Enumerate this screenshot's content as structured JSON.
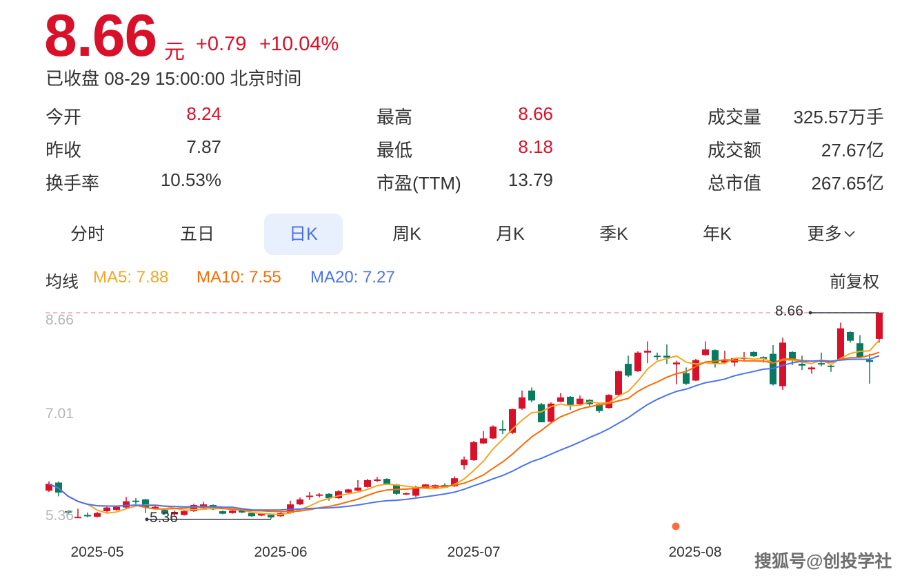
{
  "quote": {
    "price": "8.66",
    "unit": "元",
    "change": "+0.79",
    "change_pct": "+10.04%",
    "status": "已收盘 08-29 15:00:00 北京时间"
  },
  "stats": [
    {
      "label": "今开",
      "value": "8.24",
      "color": "#d9102a"
    },
    {
      "label": "最高",
      "value": "8.66",
      "color": "#d9102a"
    },
    {
      "label": "成交量",
      "value": "325.57万手",
      "color": "#333333"
    },
    {
      "label": "昨收",
      "value": "7.87",
      "color": "#333333"
    },
    {
      "label": "最低",
      "value": "8.18",
      "color": "#d9102a"
    },
    {
      "label": "成交额",
      "value": "27.67亿",
      "color": "#333333"
    },
    {
      "label": "换手率",
      "value": "10.53%",
      "color": "#333333"
    },
    {
      "label": "市盈(TTM)",
      "value": "13.79",
      "color": "#333333"
    },
    {
      "label": "总市值",
      "value": "267.65亿",
      "color": "#333333"
    }
  ],
  "tabs": [
    {
      "label": "分时",
      "active": false
    },
    {
      "label": "五日",
      "active": false
    },
    {
      "label": "日K",
      "active": true
    },
    {
      "label": "周K",
      "active": false
    },
    {
      "label": "月K",
      "active": false
    },
    {
      "label": "季K",
      "active": false
    },
    {
      "label": "年K",
      "active": false
    },
    {
      "label": "更多",
      "active": false,
      "icon": "chevron-down-icon"
    }
  ],
  "legend": {
    "title": "均线",
    "ma5": "MA5: 7.88",
    "ma10": "MA10: 7.55",
    "ma20": "MA20: 7.27",
    "adjust": "前复权"
  },
  "colors": {
    "up": "#d9102a",
    "down": "#087a5f",
    "ma5": "#f5a623",
    "ma10": "#ff6a00",
    "ma20": "#4b73f0",
    "active_tab_bg": "#e8f0fd",
    "active_tab_text": "#4a6ee0"
  },
  "watermark": "搜狐号@创投学社",
  "chart_data": {
    "type": "candlestick",
    "y_ticks": [
      "8.66",
      "7.01",
      "5.36"
    ],
    "ylim": [
      5.36,
      8.66
    ],
    "x_ticks": [
      "2025-05",
      "2025-06",
      "2025-07",
      "2025-08"
    ],
    "max_label": "8.66",
    "min_label": "5.36",
    "ma_periods": [
      5,
      10,
      20
    ],
    "candles_ohlc": [
      [
        5.8,
        5.91,
        5.95,
        5.78
      ],
      [
        5.93,
        5.77,
        5.95,
        5.71
      ],
      [
        5.47,
        5.45,
        5.49,
        5.43
      ],
      [
        5.36,
        5.38,
        5.51,
        5.36
      ],
      [
        5.41,
        5.4,
        5.45,
        5.37
      ],
      [
        5.38,
        5.44,
        5.46,
        5.37
      ],
      [
        5.47,
        5.53,
        5.56,
        5.45
      ],
      [
        5.49,
        5.54,
        5.56,
        5.48
      ],
      [
        5.53,
        5.63,
        5.7,
        5.52
      ],
      [
        5.64,
        5.63,
        5.68,
        5.58
      ],
      [
        5.66,
        5.53,
        5.67,
        5.44
      ],
      [
        5.52,
        5.54,
        5.57,
        5.5
      ],
      [
        5.49,
        5.43,
        5.5,
        5.41
      ],
      [
        5.42,
        5.46,
        5.48,
        5.4
      ],
      [
        5.41,
        5.47,
        5.49,
        5.4
      ],
      [
        5.47,
        5.57,
        5.59,
        5.46
      ],
      [
        5.52,
        5.58,
        5.62,
        5.51
      ],
      [
        5.57,
        5.5,
        5.58,
        5.49
      ],
      [
        5.47,
        5.43,
        5.48,
        5.42
      ],
      [
        5.44,
        5.48,
        5.49,
        5.43
      ],
      [
        5.48,
        5.45,
        5.49,
        5.44
      ],
      [
        5.44,
        5.39,
        5.45,
        5.38
      ],
      [
        5.4,
        5.43,
        5.44,
        5.39
      ],
      [
        5.41,
        5.37,
        5.42,
        5.35
      ],
      [
        5.39,
        5.44,
        5.45,
        5.38
      ],
      [
        5.44,
        5.58,
        5.64,
        5.43
      ],
      [
        5.58,
        5.66,
        5.69,
        5.57
      ],
      [
        5.71,
        5.72,
        5.78,
        5.65
      ],
      [
        5.72,
        5.74,
        5.76,
        5.69
      ],
      [
        5.75,
        5.68,
        5.76,
        5.64
      ],
      [
        5.68,
        5.79,
        5.81,
        5.67
      ],
      [
        5.77,
        5.82,
        5.83,
        5.76
      ],
      [
        5.8,
        5.85,
        5.97,
        5.79
      ],
      [
        5.86,
        5.97,
        5.99,
        5.85
      ],
      [
        5.96,
        5.98,
        6.02,
        5.94
      ],
      [
        5.99,
        5.91,
        6.0,
        5.89
      ],
      [
        5.9,
        5.75,
        5.91,
        5.73
      ],
      [
        5.74,
        5.76,
        5.77,
        5.73
      ],
      [
        5.72,
        5.86,
        5.88,
        5.7
      ],
      [
        5.84,
        5.9,
        5.91,
        5.83
      ],
      [
        5.85,
        5.89,
        5.9,
        5.84
      ],
      [
        5.89,
        5.85,
        5.92,
        5.84
      ],
      [
        5.87,
        6.0,
        6.03,
        5.86
      ],
      [
        6.21,
        6.3,
        6.35,
        6.14
      ],
      [
        6.29,
        6.58,
        6.6,
        6.28
      ],
      [
        6.56,
        6.64,
        6.76,
        6.55
      ],
      [
        6.64,
        6.83,
        6.85,
        6.63
      ],
      [
        6.79,
        6.78,
        6.93,
        6.71
      ],
      [
        6.73,
        7.11,
        7.12,
        6.71
      ],
      [
        7.12,
        7.3,
        7.41,
        7.1
      ],
      [
        7.41,
        7.25,
        7.46,
        7.22
      ],
      [
        7.19,
        6.9,
        7.21,
        6.9
      ],
      [
        6.91,
        7.2,
        7.22,
        6.89
      ],
      [
        7.23,
        7.3,
        7.37,
        7.22
      ],
      [
        7.31,
        7.18,
        7.32,
        7.1
      ],
      [
        7.19,
        7.28,
        7.33,
        7.17
      ],
      [
        7.26,
        7.19,
        7.27,
        7.15
      ],
      [
        7.19,
        7.08,
        7.2,
        7.05
      ],
      [
        7.13,
        7.34,
        7.35,
        7.12
      ],
      [
        7.34,
        7.72,
        7.73,
        7.33
      ],
      [
        7.84,
        7.65,
        7.97,
        7.63
      ],
      [
        7.72,
        8.02,
        8.04,
        7.71
      ],
      [
        8.02,
        8.05,
        8.2,
        7.85
      ],
      [
        7.97,
        7.96,
        8.02,
        7.9
      ],
      [
        7.97,
        7.94,
        8.15,
        7.84
      ],
      [
        7.83,
        7.86,
        7.89,
        7.51
      ],
      [
        7.69,
        7.52,
        7.78,
        7.5
      ],
      [
        7.57,
        7.9,
        7.92,
        7.56
      ],
      [
        7.98,
        8.07,
        8.2,
        7.97
      ],
      [
        8.06,
        7.85,
        8.07,
        7.78
      ],
      [
        7.86,
        7.89,
        8.05,
        7.84
      ],
      [
        7.86,
        7.93,
        7.94,
        7.8
      ],
      [
        7.92,
        7.94,
        8.03,
        7.9
      ],
      [
        8.03,
        7.96,
        8.04,
        7.95
      ],
      [
        7.95,
        7.92,
        7.96,
        7.86
      ],
      [
        8.0,
        7.51,
        8.14,
        7.49
      ],
      [
        7.48,
        8.18,
        8.26,
        7.42
      ],
      [
        8.03,
        7.92,
        8.04,
        7.82
      ],
      [
        7.84,
        7.81,
        7.97,
        7.74
      ],
      [
        7.75,
        7.78,
        7.8,
        7.68
      ],
      [
        7.85,
        7.83,
        8.02,
        7.8
      ],
      [
        7.81,
        7.8,
        7.84,
        7.71
      ],
      [
        7.91,
        8.41,
        8.5,
        7.9
      ],
      [
        8.35,
        8.21,
        8.36,
        8.18
      ],
      [
        8.17,
        7.95,
        8.3,
        7.93
      ],
      [
        7.9,
        7.87,
        8.0,
        7.52
      ],
      [
        8.24,
        8.66,
        8.66,
        8.18
      ]
    ]
  }
}
